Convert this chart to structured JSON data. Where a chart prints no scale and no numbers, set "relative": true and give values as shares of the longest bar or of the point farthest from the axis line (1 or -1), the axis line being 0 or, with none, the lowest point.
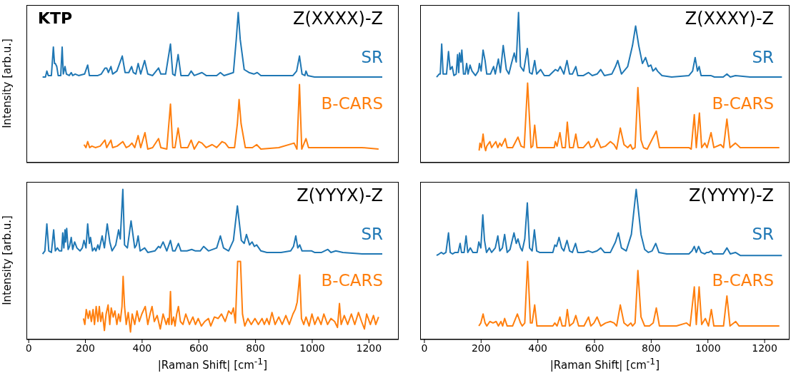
{
  "chart_data": [
    {
      "type": "line",
      "title": "Z(XXXX)-Z",
      "ylabel": "Intensity [arb.u.]",
      "annotations": [
        "KTP"
      ],
      "relative": true,
      "xlim": [
        -8,
        1305
      ],
      "xticks": [
        0,
        200,
        400,
        600,
        800,
        1000,
        1200
      ],
      "tick_labels": false,
      "marker": "none",
      "series": [
        {
          "name": "SR",
          "color": "#1f77b4",
          "x": [
            49,
            59,
            64,
            69,
            80,
            87,
            91,
            94,
            99,
            104,
            113,
            118,
            122,
            128,
            133,
            143,
            150,
            155,
            164,
            176,
            197,
            208,
            214,
            244,
            256,
            269,
            275,
            281,
            290,
            296,
            311,
            330,
            340,
            353,
            363,
            369,
            378,
            386,
            395,
            409,
            420,
            437,
            458,
            466,
            483,
            500,
            508,
            516,
            527,
            537,
            563,
            573,
            584,
            611,
            626,
            663,
            676,
            689,
            722,
            732,
            739,
            746,
            760,
            777,
            794,
            806,
            819,
            840,
            932,
            945,
            955,
            964,
            974,
            978,
            984,
            1008,
            1092,
            1247
          ],
          "values": [
            0.57,
            0.57,
            0.61,
            0.58,
            0.58,
            0.77,
            0.66,
            0.66,
            0.64,
            0.58,
            0.58,
            0.77,
            0.59,
            0.64,
            0.59,
            0.58,
            0.6,
            0.58,
            0.59,
            0.58,
            0.59,
            0.65,
            0.58,
            0.58,
            0.59,
            0.63,
            0.63,
            0.6,
            0.64,
            0.59,
            0.61,
            0.71,
            0.6,
            0.6,
            0.64,
            0.6,
            0.59,
            0.66,
            0.59,
            0.68,
            0.59,
            0.58,
            0.63,
            0.59,
            0.59,
            0.79,
            0.59,
            0.58,
            0.72,
            0.58,
            0.58,
            0.61,
            0.58,
            0.6,
            0.58,
            0.58,
            0.6,
            0.58,
            0.6,
            0.82,
            1,
            0.82,
            0.62,
            0.6,
            0.59,
            0.6,
            0.58,
            0.58,
            0.58,
            0.61,
            0.71,
            0.59,
            0.58,
            0.61,
            0.58,
            0.57,
            0.57,
            0.57
          ]
        },
        {
          "name": "B-CARS",
          "color": "#ff7f0e",
          "x": [
            195,
            202,
            208,
            215,
            223,
            235,
            252,
            269,
            275,
            290,
            296,
            312,
            332,
            344,
            354,
            364,
            374,
            386,
            395,
            410,
            420,
            437,
            458,
            466,
            487,
            500,
            508,
            516,
            527,
            537,
            561,
            573,
            584,
            600,
            611,
            626,
            647,
            663,
            682,
            693,
            705,
            726,
            736,
            742,
            749,
            764,
            789,
            804,
            819,
            882,
            936,
            946,
            955,
            963,
            978,
            987,
            1050,
            1092,
            1176,
            1234
          ],
          "values": [
            0.12,
            0.1,
            0.14,
            0.1,
            0.11,
            0.1,
            0.11,
            0.15,
            0.1,
            0.15,
            0.1,
            0.11,
            0.14,
            0.1,
            0.11,
            0.13,
            0.1,
            0.18,
            0.1,
            0.2,
            0.09,
            0.1,
            0.16,
            0.1,
            0.09,
            0.39,
            0.1,
            0.1,
            0.23,
            0.1,
            0.1,
            0.15,
            0.09,
            0.14,
            0.13,
            0.1,
            0.12,
            0.1,
            0.14,
            0.13,
            0.1,
            0.1,
            0.26,
            0.42,
            0.26,
            0.1,
            0.1,
            0.12,
            0.09,
            0.1,
            0.13,
            0.09,
            0.52,
            0.09,
            0.16,
            0.1,
            0.1,
            0.1,
            0.1,
            0.09
          ]
        }
      ]
    },
    {
      "type": "line",
      "title": "Z(XXXY)-Z",
      "relative": true,
      "xlim": [
        -15,
        1288
      ],
      "xticks": [
        0,
        200,
        400,
        600,
        800,
        1000,
        1200
      ],
      "tick_labels": false,
      "marker": "none",
      "series": [
        {
          "name": "SR",
          "color": "#1f77b4",
          "x": [
            43,
            52,
            56,
            61,
            66,
            78,
            85,
            91,
            98,
            104,
            112,
            117,
            121,
            124,
            129,
            132,
            138,
            144,
            149,
            154,
            161,
            168,
            180,
            190,
            194,
            200,
            207,
            214,
            220,
            233,
            244,
            250,
            261,
            268,
            278,
            289,
            298,
            307,
            317,
            324,
            332,
            339,
            350,
            363,
            371,
            380,
            389,
            396,
            410,
            423,
            440,
            462,
            471,
            479,
            492,
            503,
            512,
            522,
            534,
            541,
            561,
            579,
            592,
            609,
            622,
            635,
            661,
            674,
            682,
            695,
            717,
            734,
            745,
            756,
            769,
            780,
            790,
            799,
            806,
            812,
            816,
            822,
            838,
            872,
            933,
            946,
            955,
            963,
            969,
            976,
            993,
            1010,
            1023,
            1054,
            1067,
            1079,
            1097,
            1149,
            1261
          ],
          "values": [
            0.57,
            0.59,
            0.59,
            0.79,
            0.59,
            0.59,
            0.74,
            0.62,
            0.64,
            0.58,
            0.59,
            0.72,
            0.6,
            0.73,
            0.67,
            0.75,
            0.59,
            0.59,
            0.66,
            0.59,
            0.65,
            0.61,
            0.58,
            0.61,
            0.66,
            0.61,
            0.75,
            0.68,
            0.59,
            0.59,
            0.64,
            0.59,
            0.69,
            0.6,
            0.78,
            0.62,
            0.59,
            0.66,
            0.73,
            0.67,
            1,
            0.64,
            0.61,
            0.76,
            0.6,
            0.59,
            0.68,
            0.59,
            0.62,
            0.58,
            0.58,
            0.62,
            0.61,
            0.64,
            0.59,
            0.68,
            0.59,
            0.59,
            0.64,
            0.58,
            0.58,
            0.6,
            0.58,
            0.59,
            0.62,
            0.58,
            0.59,
            0.64,
            0.68,
            0.59,
            0.64,
            0.78,
            0.91,
            0.78,
            0.66,
            0.7,
            0.64,
            0.65,
            0.61,
            0.62,
            0.63,
            0.61,
            0.58,
            0.57,
            0.58,
            0.61,
            0.7,
            0.61,
            0.64,
            0.58,
            0.58,
            0.58,
            0.57,
            0.57,
            0.59,
            0.57,
            0.58,
            0.57,
            0.57
          ]
        },
        {
          "name": "B-CARS",
          "color": "#ff7f0e",
          "x": [
            193,
            196,
            201,
            207,
            212,
            216,
            220,
            231,
            237,
            252,
            259,
            266,
            272,
            285,
            292,
            311,
            330,
            341,
            352,
            364,
            376,
            382,
            389,
            397,
            423,
            458,
            462,
            468,
            478,
            486,
            497,
            504,
            512,
            525,
            534,
            542,
            561,
            579,
            587,
            598,
            609,
            622,
            639,
            656,
            669,
            678,
            691,
            704,
            717,
            727,
            734,
            743,
            753,
            764,
            773,
            786,
            818,
            829,
            889,
            933,
            941,
            952,
            959,
            970,
            978,
            989,
            997,
            1011,
            1021,
            1045,
            1055,
            1067,
            1078,
            1097,
            1114,
            1192,
            1252
          ],
          "values": [
            0.08,
            0.13,
            0.1,
            0.19,
            0.11,
            0.08,
            0.11,
            0.14,
            0.1,
            0.14,
            0.1,
            0.13,
            0.11,
            0.16,
            0.1,
            0.1,
            0.17,
            0.11,
            0.1,
            0.53,
            0.1,
            0.11,
            0.25,
            0.1,
            0.1,
            0.1,
            0.14,
            0.11,
            0.2,
            0.1,
            0.1,
            0.27,
            0.1,
            0.1,
            0.19,
            0.1,
            0.1,
            0.14,
            0.1,
            0.11,
            0.16,
            0.1,
            0.11,
            0.14,
            0.12,
            0.09,
            0.23,
            0.12,
            0.1,
            0.12,
            0.09,
            0.1,
            0.5,
            0.15,
            0.1,
            0.09,
            0.21,
            0.1,
            0.1,
            0.1,
            0.09,
            0.32,
            0.1,
            0.33,
            0.1,
            0.13,
            0.1,
            0.2,
            0.1,
            0.12,
            0.1,
            0.29,
            0.1,
            0.13,
            0.1,
            0.1,
            0.1
          ]
        }
      ]
    },
    {
      "type": "line",
      "title": "Z(YYYX)-Z",
      "ylabel": "Intensity [arb.u.]",
      "xlabel": "|Raman Shift| [cm$^{-1}$]",
      "relative": true,
      "xlim": [
        -8,
        1305
      ],
      "xticks": [
        0,
        200,
        400,
        600,
        800,
        1000,
        1200
      ],
      "tick_labels": "x",
      "marker": "none",
      "series": [
        {
          "name": "SR",
          "color": "#1f77b4",
          "x": [
            49,
            57,
            64,
            71,
            80,
            88,
            94,
            101,
            108,
            116,
            120,
            124,
            128,
            130,
            134,
            139,
            144,
            150,
            155,
            162,
            170,
            181,
            189,
            195,
            202,
            208,
            214,
            218,
            225,
            232,
            237,
            244,
            249,
            259,
            267,
            277,
            286,
            294,
            307,
            317,
            323,
            332,
            338,
            348,
            361,
            374,
            380,
            386,
            393,
            409,
            420,
            445,
            458,
            464,
            474,
            487,
            500,
            508,
            516,
            528,
            537,
            558,
            575,
            588,
            605,
            617,
            634,
            663,
            676,
            687,
            705,
            722,
            736,
            750,
            760,
            768,
            779,
            788,
            796,
            804,
            819,
            840,
            890,
            924,
            934,
            942,
            949,
            956,
            964,
            978,
            998,
            1008,
            1033,
            1055,
            1066,
            1083,
            1108,
            1176,
            1247
          ],
          "values": [
            0.57,
            0.59,
            0.77,
            0.59,
            0.58,
            0.73,
            0.59,
            0.61,
            0.59,
            0.59,
            0.71,
            0.61,
            0.73,
            0.65,
            0.74,
            0.6,
            0.62,
            0.68,
            0.6,
            0.65,
            0.61,
            0.59,
            0.61,
            0.66,
            0.61,
            0.77,
            0.64,
            0.68,
            0.59,
            0.61,
            0.59,
            0.63,
            0.6,
            0.69,
            0.61,
            0.77,
            0.65,
            0.59,
            0.63,
            0.73,
            0.67,
            1,
            0.63,
            0.61,
            0.79,
            0.61,
            0.63,
            0.69,
            0.59,
            0.61,
            0.58,
            0.59,
            0.62,
            0.61,
            0.65,
            0.59,
            0.66,
            0.59,
            0.59,
            0.64,
            0.59,
            0.59,
            0.6,
            0.59,
            0.59,
            0.62,
            0.59,
            0.61,
            0.69,
            0.61,
            0.59,
            0.66,
            0.89,
            0.66,
            0.64,
            0.7,
            0.63,
            0.65,
            0.62,
            0.63,
            0.59,
            0.58,
            0.58,
            0.59,
            0.62,
            0.69,
            0.61,
            0.63,
            0.59,
            0.59,
            0.59,
            0.58,
            0.58,
            0.6,
            0.58,
            0.59,
            0.58,
            0.57,
            0.57
          ]
        },
        {
          "name": "B-CARS",
          "color": "#ff7f0e",
          "x": [
            193,
            198,
            203,
            210,
            215,
            221,
            227,
            232,
            238,
            244,
            249,
            254,
            260,
            267,
            273,
            280,
            286,
            291,
            298,
            304,
            311,
            317,
            323,
            329,
            333,
            338,
            344,
            351,
            359,
            365,
            374,
            382,
            390,
            399,
            411,
            420,
            428,
            435,
            443,
            453,
            464,
            474,
            485,
            491,
            495,
            500,
            504,
            511,
            516,
            522,
            528,
            535,
            544,
            554,
            567,
            579,
            588,
            598,
            609,
            621,
            634,
            642,
            655,
            668,
            680,
            693,
            705,
            715,
            722,
            729,
            737,
            747,
            754,
            762,
            773,
            785,
            798,
            810,
            823,
            831,
            840,
            848,
            858,
            869,
            882,
            894,
            907,
            919,
            932,
            940,
            947,
            956,
            962,
            970,
            978,
            989,
            999,
            1009,
            1020,
            1031,
            1041,
            1054,
            1066,
            1079,
            1089,
            1096,
            1102,
            1113,
            1125,
            1138,
            1150,
            1163,
            1174,
            1184,
            1192,
            1205,
            1216,
            1224,
            1234
          ],
          "values": [
            0.14,
            0.1,
            0.2,
            0.14,
            0.19,
            0.12,
            0.2,
            0.1,
            0.22,
            0.12,
            0.22,
            0.12,
            0.18,
            0.06,
            0.17,
            0.23,
            0.1,
            0.21,
            0.15,
            0.19,
            0.1,
            0.17,
            0.12,
            0.22,
            0.42,
            0.22,
            0.1,
            0.18,
            0.05,
            0.17,
            0.1,
            0.19,
            0.12,
            0.17,
            0.22,
            0.1,
            0.17,
            0.22,
            0.12,
            0.16,
            0.07,
            0.17,
            0.1,
            0.14,
            0.1,
            0.32,
            0.1,
            0.15,
            0.09,
            0.17,
            0.22,
            0.12,
            0.1,
            0.17,
            0.1,
            0.15,
            0.1,
            0.14,
            0.09,
            0.12,
            0.14,
            0.09,
            0.15,
            0.14,
            0.17,
            0.12,
            0.19,
            0.17,
            0.21,
            0.11,
            0.52,
            0.52,
            0.17,
            0.09,
            0.14,
            0.1,
            0.14,
            0.1,
            0.14,
            0.1,
            0.14,
            0.1,
            0.18,
            0.1,
            0.15,
            0.1,
            0.16,
            0.1,
            0.17,
            0.2,
            0.25,
            0.43,
            0.14,
            0.1,
            0.15,
            0.09,
            0.17,
            0.1,
            0.15,
            0.1,
            0.17,
            0.1,
            0.14,
            0.12,
            0.08,
            0.24,
            0.1,
            0.16,
            0.1,
            0.17,
            0.1,
            0.18,
            0.12,
            0.07,
            0.17,
            0.1,
            0.16,
            0.1,
            0.15
          ]
        }
      ]
    },
    {
      "type": "line",
      "title": "Z(YYYY)-Z",
      "xlabel": "|Raman Shift| [cm$^{-1}$]",
      "relative": true,
      "xlim": [
        -15,
        1288
      ],
      "xticks": [
        0,
        200,
        400,
        600,
        800,
        1000,
        1200
      ],
      "tick_labels": "x",
      "marker": "none",
      "series": [
        {
          "name": "SR",
          "color": "#1f77b4",
          "x": [
            43,
            52,
            60,
            67,
            76,
            85,
            91,
            99,
            108,
            119,
            126,
            131,
            140,
            147,
            153,
            162,
            171,
            186,
            192,
            199,
            206,
            212,
            219,
            229,
            237,
            250,
            259,
            266,
            275,
            283,
            292,
            302,
            316,
            324,
            330,
            339,
            345,
            354,
            363,
            371,
            380,
            388,
            396,
            406,
            423,
            453,
            460,
            466,
            475,
            484,
            492,
            503,
            512,
            522,
            533,
            541,
            561,
            579,
            592,
            609,
            622,
            635,
            656,
            674,
            684,
            695,
            712,
            730,
            747,
            764,
            777,
            790,
            803,
            816,
            827,
            855,
            933,
            944,
            952,
            959,
            967,
            976,
            989,
            995,
            1003,
            1011,
            1019,
            1054,
            1067,
            1079,
            1097,
            1114,
            1261
          ],
          "values": [
            0.56,
            0.57,
            0.58,
            0.57,
            0.58,
            0.71,
            0.58,
            0.57,
            0.58,
            0.58,
            0.64,
            0.58,
            0.58,
            0.69,
            0.58,
            0.61,
            0.58,
            0.58,
            0.65,
            0.61,
            0.83,
            0.66,
            0.58,
            0.61,
            0.58,
            0.61,
            0.69,
            0.59,
            0.61,
            0.7,
            0.58,
            0.6,
            0.71,
            0.64,
            0.67,
            0.61,
            0.59,
            0.67,
            0.91,
            0.61,
            0.59,
            0.73,
            0.59,
            0.58,
            0.58,
            0.58,
            0.63,
            0.62,
            0.68,
            0.61,
            0.59,
            0.66,
            0.59,
            0.58,
            0.64,
            0.58,
            0.58,
            0.59,
            0.58,
            0.59,
            0.61,
            0.58,
            0.58,
            0.65,
            0.71,
            0.61,
            0.59,
            0.7,
            1,
            0.7,
            0.6,
            0.58,
            0.59,
            0.64,
            0.58,
            0.57,
            0.57,
            0.59,
            0.62,
            0.58,
            0.62,
            0.58,
            0.57,
            0.58,
            0.58,
            0.59,
            0.57,
            0.57,
            0.61,
            0.57,
            0.58,
            0.56,
            0.56
          ]
        },
        {
          "name": "B-CARS",
          "color": "#ff7f0e",
          "x": [
            192,
            199,
            207,
            214,
            220,
            231,
            242,
            253,
            261,
            270,
            276,
            283,
            292,
            311,
            328,
            339,
            345,
            354,
            364,
            374,
            380,
            389,
            397,
            423,
            453,
            460,
            468,
            478,
            486,
            497,
            504,
            512,
            525,
            534,
            544,
            563,
            579,
            587,
            598,
            609,
            622,
            639,
            656,
            669,
            678,
            691,
            704,
            717,
            728,
            734,
            743,
            753,
            764,
            777,
            794,
            807,
            818,
            829,
            889,
            924,
            937,
            952,
            959,
            969,
            978,
            991,
            1002,
            1012,
            1021,
            1045,
            1055,
            1067,
            1078,
            1098,
            1110,
            1192,
            1252
          ],
          "values": [
            0.09,
            0.11,
            0.17,
            0.11,
            0.09,
            0.12,
            0.11,
            0.12,
            0.09,
            0.12,
            0.09,
            0.14,
            0.09,
            0.09,
            0.17,
            0.11,
            0.09,
            0.11,
            0.52,
            0.11,
            0.11,
            0.23,
            0.09,
            0.09,
            0.09,
            0.11,
            0.09,
            0.15,
            0.09,
            0.09,
            0.2,
            0.09,
            0.11,
            0.16,
            0.09,
            0.09,
            0.15,
            0.09,
            0.11,
            0.15,
            0.09,
            0.11,
            0.12,
            0.11,
            0.09,
            0.23,
            0.11,
            0.09,
            0.11,
            0.09,
            0.11,
            0.46,
            0.15,
            0.09,
            0.09,
            0.11,
            0.21,
            0.09,
            0.09,
            0.11,
            0.09,
            0.35,
            0.1,
            0.35,
            0.1,
            0.14,
            0.09,
            0.2,
            0.09,
            0.09,
            0.09,
            0.29,
            0.09,
            0.12,
            0.09,
            0.09,
            0.09
          ]
        }
      ]
    }
  ]
}
